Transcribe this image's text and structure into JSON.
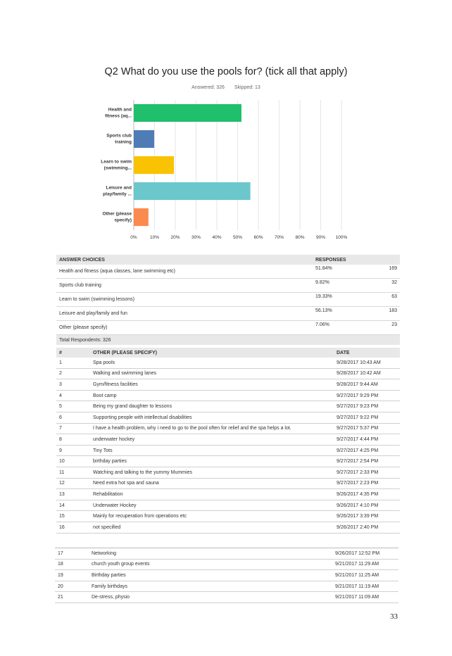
{
  "title": "Q2 What do you use the pools for? (tick all that apply)",
  "answered": "Answered: 326",
  "skipped": "Skipped: 13",
  "chart_data": {
    "type": "bar",
    "orientation": "horizontal",
    "categories": [
      [
        "Health and",
        "fitness (aq..."
      ],
      [
        "Sports club",
        "training"
      ],
      [
        "Learn to swim",
        "(swimming..."
      ],
      [
        "Leisure and",
        "play/family ..."
      ],
      [
        "Other (please",
        "specify)"
      ]
    ],
    "values": [
      51.84,
      9.82,
      19.33,
      56.13,
      7.06
    ],
    "colors": [
      "#1fbf6b",
      "#4f7bb6",
      "#f9c202",
      "#6bc7cb",
      "#fb8a4f"
    ],
    "xticks": [
      "0%",
      "10%",
      "20%",
      "30%",
      "40%",
      "50%",
      "60%",
      "70%",
      "80%",
      "90%",
      "100%"
    ],
    "xlim": [
      0,
      100
    ],
    "grid": true
  },
  "answers": {
    "col_choice": "ANSWER CHOICES",
    "col_responses": "RESPONSES",
    "rows": [
      {
        "choice": "Health and fitness  (aqua classes, lane swimming etc)",
        "pct": "51.84%",
        "count": "169"
      },
      {
        "choice": "Sports club training",
        "pct": "9.82%",
        "count": "32"
      },
      {
        "choice": "Learn to swim (swimming lessons)",
        "pct": "19.33%",
        "count": "63"
      },
      {
        "choice": "Leisure and play/family and fun",
        "pct": "56.13%",
        "count": "183"
      },
      {
        "choice": "Other (please specify)",
        "pct": "7.06%",
        "count": "23"
      }
    ],
    "total": "Total Respondents: 326"
  },
  "other": {
    "col_num": "#",
    "col_text": "OTHER (PLEASE SPECIFY)",
    "col_date": "DATE",
    "rows": [
      {
        "num": "1",
        "text": "Spa pools",
        "date": "9/28/2017 10:43 AM"
      },
      {
        "num": "2",
        "text": "Walking and swimming lanes",
        "date": "9/28/2017 10:42 AM"
      },
      {
        "num": "3",
        "text": "Gym/fitness facilities",
        "date": "9/28/2017 9:44 AM"
      },
      {
        "num": "4",
        "text": "Boot camp",
        "date": "9/27/2017 9:29 PM"
      },
      {
        "num": "5",
        "text": "Being my grand daughter to lessons",
        "date": "9/27/2017 9:23 PM"
      },
      {
        "num": "6",
        "text": "Supporting people with intellectual disabilities",
        "date": "9/27/2017 9:22 PM"
      },
      {
        "num": "7",
        "text": "I have a health problem, why i need to go to the pool often for relief and the spa helps a lot.",
        "date": "9/27/2017 5:37 PM"
      },
      {
        "num": "8",
        "text": "underwater hockey",
        "date": "9/27/2017 4:44 PM"
      },
      {
        "num": "9",
        "text": "Tiny Tots",
        "date": "9/27/2017 4:25 PM"
      },
      {
        "num": "10",
        "text": "birthday parties",
        "date": "9/27/2017 2:54 PM"
      },
      {
        "num": "11",
        "text": "Watching and talking to the yummy Mummies",
        "date": "9/27/2017 2:33 PM"
      },
      {
        "num": "12",
        "text": "Need extra hot spa and sauna",
        "date": "9/27/2017 2:23 PM"
      },
      {
        "num": "13",
        "text": "Rehabilitation",
        "date": "9/26/2017 4:35 PM"
      },
      {
        "num": "14",
        "text": "Underwater Hockey",
        "date": "9/26/2017 4:10 PM"
      },
      {
        "num": "15",
        "text": "Mainly for recuperation from operations etc",
        "date": "9/26/2017 3:39 PM"
      },
      {
        "num": "16",
        "text": "not specified",
        "date": "9/26/2017 2:40 PM"
      }
    ],
    "rows2": [
      {
        "num": "17",
        "text": "Networking",
        "date": "9/26/2017 12:52 PM"
      },
      {
        "num": "18",
        "text": "church youth group events",
        "date": "9/21/2017 11:29 AM"
      },
      {
        "num": "19",
        "text": "Birthday parties",
        "date": "9/21/2017 11:25 AM"
      },
      {
        "num": "20",
        "text": "Family birthdays",
        "date": "9/21/2017 11:19 AM"
      },
      {
        "num": "21",
        "text": "De-stress, physio",
        "date": "9/21/2017 11:09 AM"
      }
    ]
  },
  "page_number": "33"
}
